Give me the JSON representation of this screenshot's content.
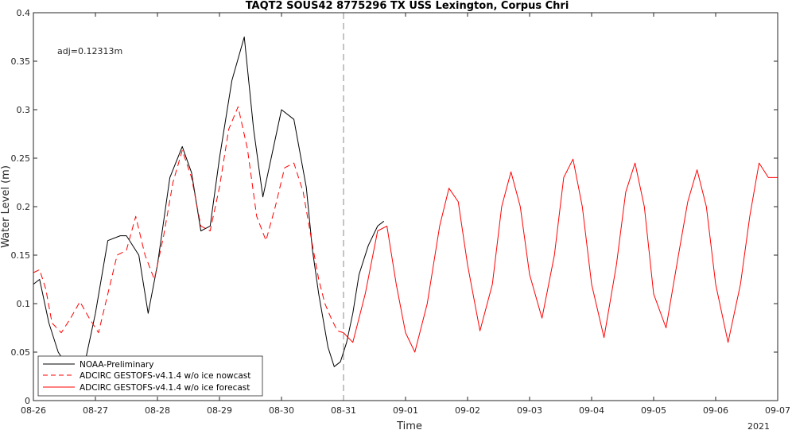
{
  "chart_data": {
    "type": "line",
    "title": "TAQT2 SOUS42 8775296 TX USS Lexington, Corpus Chri",
    "xlabel": "Time",
    "ylabel": "Water Level (m)",
    "year_label": "2021",
    "annotation": "adj=0.12313m",
    "nowcast_end_label": "08-31",
    "ylim": [
      0,
      0.4
    ],
    "xlim": [
      "08-26",
      "09-07"
    ],
    "grid": false,
    "legend_position": "bottom-left",
    "x_ticks": [
      "08-26",
      "08-27",
      "08-28",
      "08-29",
      "08-30",
      "08-31",
      "09-01",
      "09-02",
      "09-03",
      "09-04",
      "09-05",
      "09-06",
      "09-07"
    ],
    "y_ticks": [
      "0",
      "0.05",
      "0.1",
      "0.15",
      "0.2",
      "0.25",
      "0.3",
      "0.35",
      "0.4"
    ],
    "series": [
      {
        "name": "NOAA-Preliminary",
        "color": "#000000",
        "style": "solid",
        "x_days": [
          0,
          0.1,
          0.25,
          0.4,
          0.55,
          0.7,
          0.85,
          1.0,
          1.2,
          1.4,
          1.5,
          1.7,
          1.85,
          2.0,
          2.2,
          2.4,
          2.55,
          2.7,
          2.85,
          3.0,
          3.2,
          3.4,
          3.55,
          3.7,
          3.85,
          4.0,
          4.2,
          4.4,
          4.5,
          4.6,
          4.75,
          4.85,
          4.95,
          5.05,
          5.15,
          5.25,
          5.4,
          5.55,
          5.65
        ],
        "y": [
          0.12,
          0.125,
          0.08,
          0.05,
          0.035,
          0.04,
          0.045,
          0.09,
          0.165,
          0.17,
          0.17,
          0.15,
          0.09,
          0.14,
          0.23,
          0.262,
          0.235,
          0.175,
          0.18,
          0.25,
          0.33,
          0.375,
          0.28,
          0.21,
          0.255,
          0.3,
          0.29,
          0.22,
          0.155,
          0.11,
          0.055,
          0.035,
          0.04,
          0.06,
          0.09,
          0.13,
          0.16,
          0.18,
          0.185
        ]
      },
      {
        "name": "ADCIRC GESTOFS-v4.1.4 w/o ice nowcast",
        "color": "#ff0000",
        "style": "dashed",
        "x_days": [
          0,
          0.1,
          0.2,
          0.3,
          0.45,
          0.6,
          0.75,
          0.9,
          1.05,
          1.2,
          1.35,
          1.5,
          1.65,
          1.8,
          1.95,
          2.1,
          2.25,
          2.4,
          2.55,
          2.7,
          2.85,
          3.0,
          3.15,
          3.3,
          3.45,
          3.6,
          3.75,
          3.9,
          4.05,
          4.2,
          4.35,
          4.5,
          4.6,
          4.7,
          4.8,
          4.9,
          5.0
        ],
        "y": [
          0.132,
          0.135,
          0.115,
          0.08,
          0.07,
          0.085,
          0.102,
          0.085,
          0.07,
          0.11,
          0.15,
          0.155,
          0.19,
          0.15,
          0.125,
          0.17,
          0.225,
          0.258,
          0.23,
          0.18,
          0.175,
          0.22,
          0.28,
          0.303,
          0.26,
          0.19,
          0.165,
          0.2,
          0.24,
          0.245,
          0.215,
          0.16,
          0.125,
          0.1,
          0.085,
          0.072,
          0.07
        ]
      },
      {
        "name": "ADCIRC GESTOFS-v4.1.4 w/o ice forecast",
        "color": "#ff0000",
        "style": "solid",
        "x_days": [
          5.0,
          5.15,
          5.35,
          5.55,
          5.7,
          5.85,
          6.0,
          6.15,
          6.35,
          6.55,
          6.7,
          6.85,
          7.0,
          7.2,
          7.4,
          7.55,
          7.7,
          7.85,
          8.0,
          8.2,
          8.4,
          8.55,
          8.7,
          8.85,
          9.0,
          9.2,
          9.4,
          9.55,
          9.7,
          9.85,
          10.0,
          10.2,
          10.4,
          10.55,
          10.7,
          10.85,
          11.0,
          11.2,
          11.4,
          11.55,
          11.7,
          11.85,
          12.0
        ],
        "y": [
          0.07,
          0.06,
          0.11,
          0.175,
          0.18,
          0.12,
          0.07,
          0.05,
          0.1,
          0.18,
          0.219,
          0.205,
          0.14,
          0.072,
          0.12,
          0.2,
          0.236,
          0.2,
          0.13,
          0.085,
          0.15,
          0.23,
          0.249,
          0.2,
          0.12,
          0.065,
          0.14,
          0.215,
          0.245,
          0.2,
          0.11,
          0.075,
          0.15,
          0.205,
          0.238,
          0.2,
          0.12,
          0.06,
          0.12,
          0.19,
          0.245,
          0.23,
          0.23
        ]
      }
    ]
  }
}
